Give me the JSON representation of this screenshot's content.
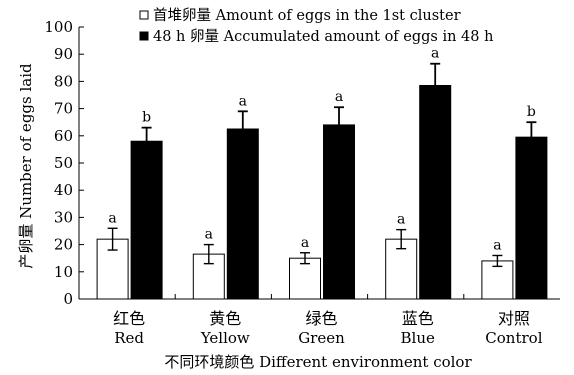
{
  "chart_data": {
    "type": "bar",
    "legend_placement": "top",
    "grid": false,
    "ylim": [
      0,
      100
    ],
    "yticks": [
      0,
      10,
      20,
      30,
      40,
      50,
      60,
      70,
      80,
      90,
      100
    ],
    "ylabel": "产卵量 Number of eggs laid",
    "xlabel": "不同环境颜色  Different environment color",
    "categories": [
      {
        "cn": "红色",
        "en": "Red"
      },
      {
        "cn": "黄色",
        "en": "Yellow"
      },
      {
        "cn": "绿色",
        "en": "Green"
      },
      {
        "cn": "蓝色",
        "en": "Blue"
      },
      {
        "cn": "对照",
        "en": "Control"
      }
    ],
    "series": [
      {
        "name": "首堆卵量 Amount of eggs in the 1st cluster",
        "color": "#ffffff",
        "values": [
          22,
          16.5,
          15,
          22,
          14
        ],
        "errors": [
          4,
          3.5,
          2,
          3.5,
          2
        ],
        "significance": [
          "a",
          "a",
          "a",
          "a",
          "a"
        ]
      },
      {
        "name": "48 h 卵量 Accumulated amount of eggs in 48 h",
        "color": "#000000",
        "values": [
          58,
          62.5,
          64,
          78.5,
          59.5
        ],
        "errors": [
          5,
          6.5,
          6.5,
          8,
          5.5
        ],
        "significance": [
          "b",
          "a",
          "a",
          "a",
          "b"
        ]
      }
    ]
  }
}
